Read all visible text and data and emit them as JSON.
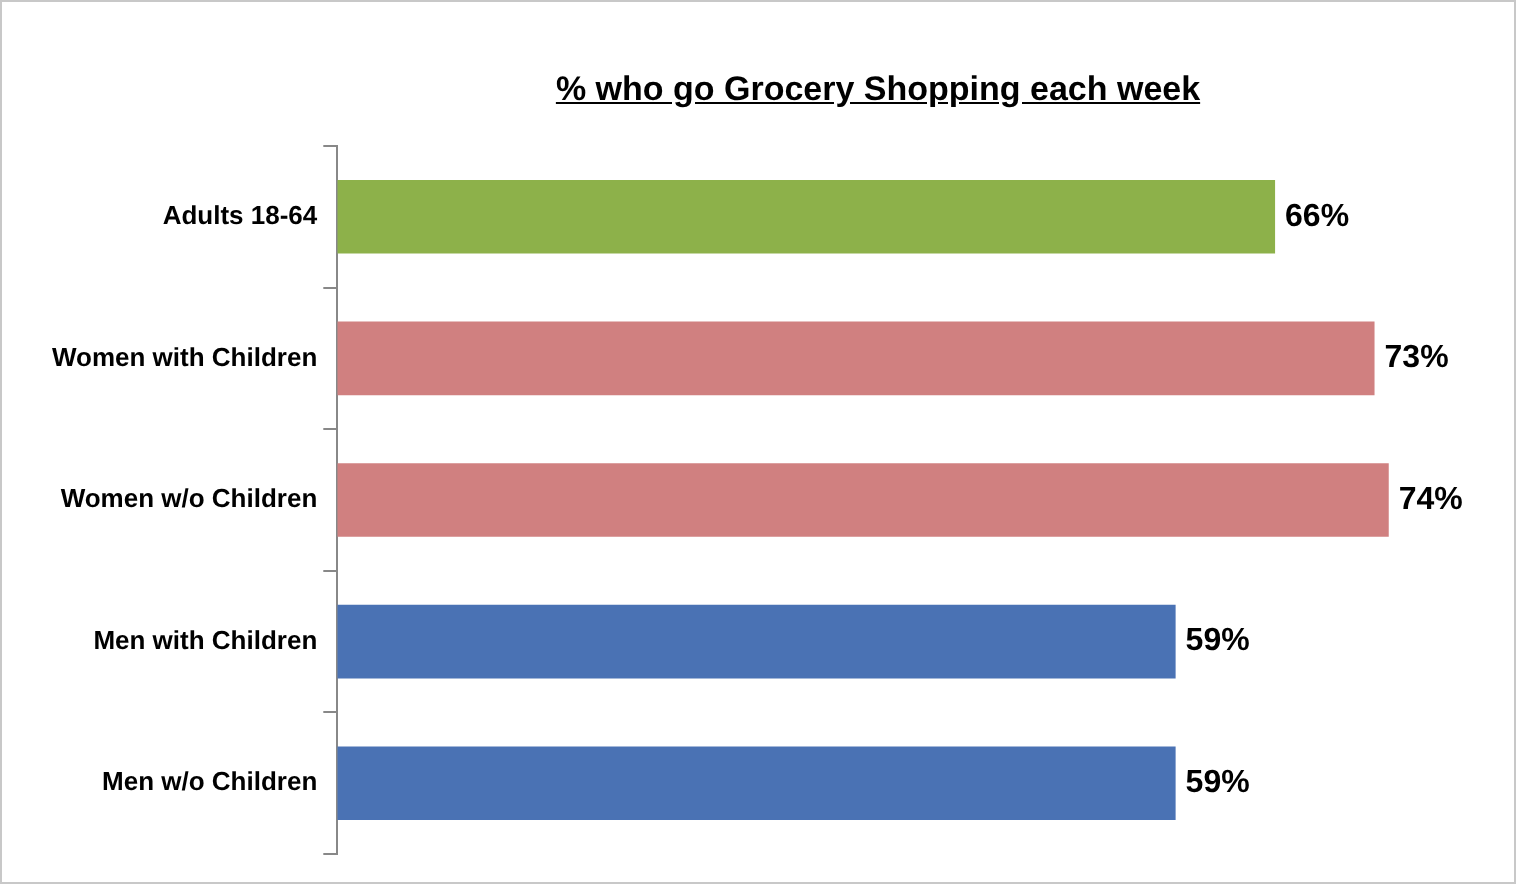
{
  "chart_data": {
    "type": "bar",
    "orientation": "horizontal",
    "title": "% who go Grocery Shopping each week",
    "categories": [
      "Adults 18-64",
      "Women with Children",
      "Women w/o Children",
      "Men with Children",
      "Men w/o Children"
    ],
    "values": [
      66,
      73,
      74,
      59,
      59
    ],
    "value_labels": [
      "66%",
      "73%",
      "74%",
      "59%",
      "59%"
    ],
    "colors": [
      "#8db14a",
      "#d08080",
      "#d08080",
      "#4a72b4",
      "#4a72b4"
    ],
    "legend": false
  }
}
